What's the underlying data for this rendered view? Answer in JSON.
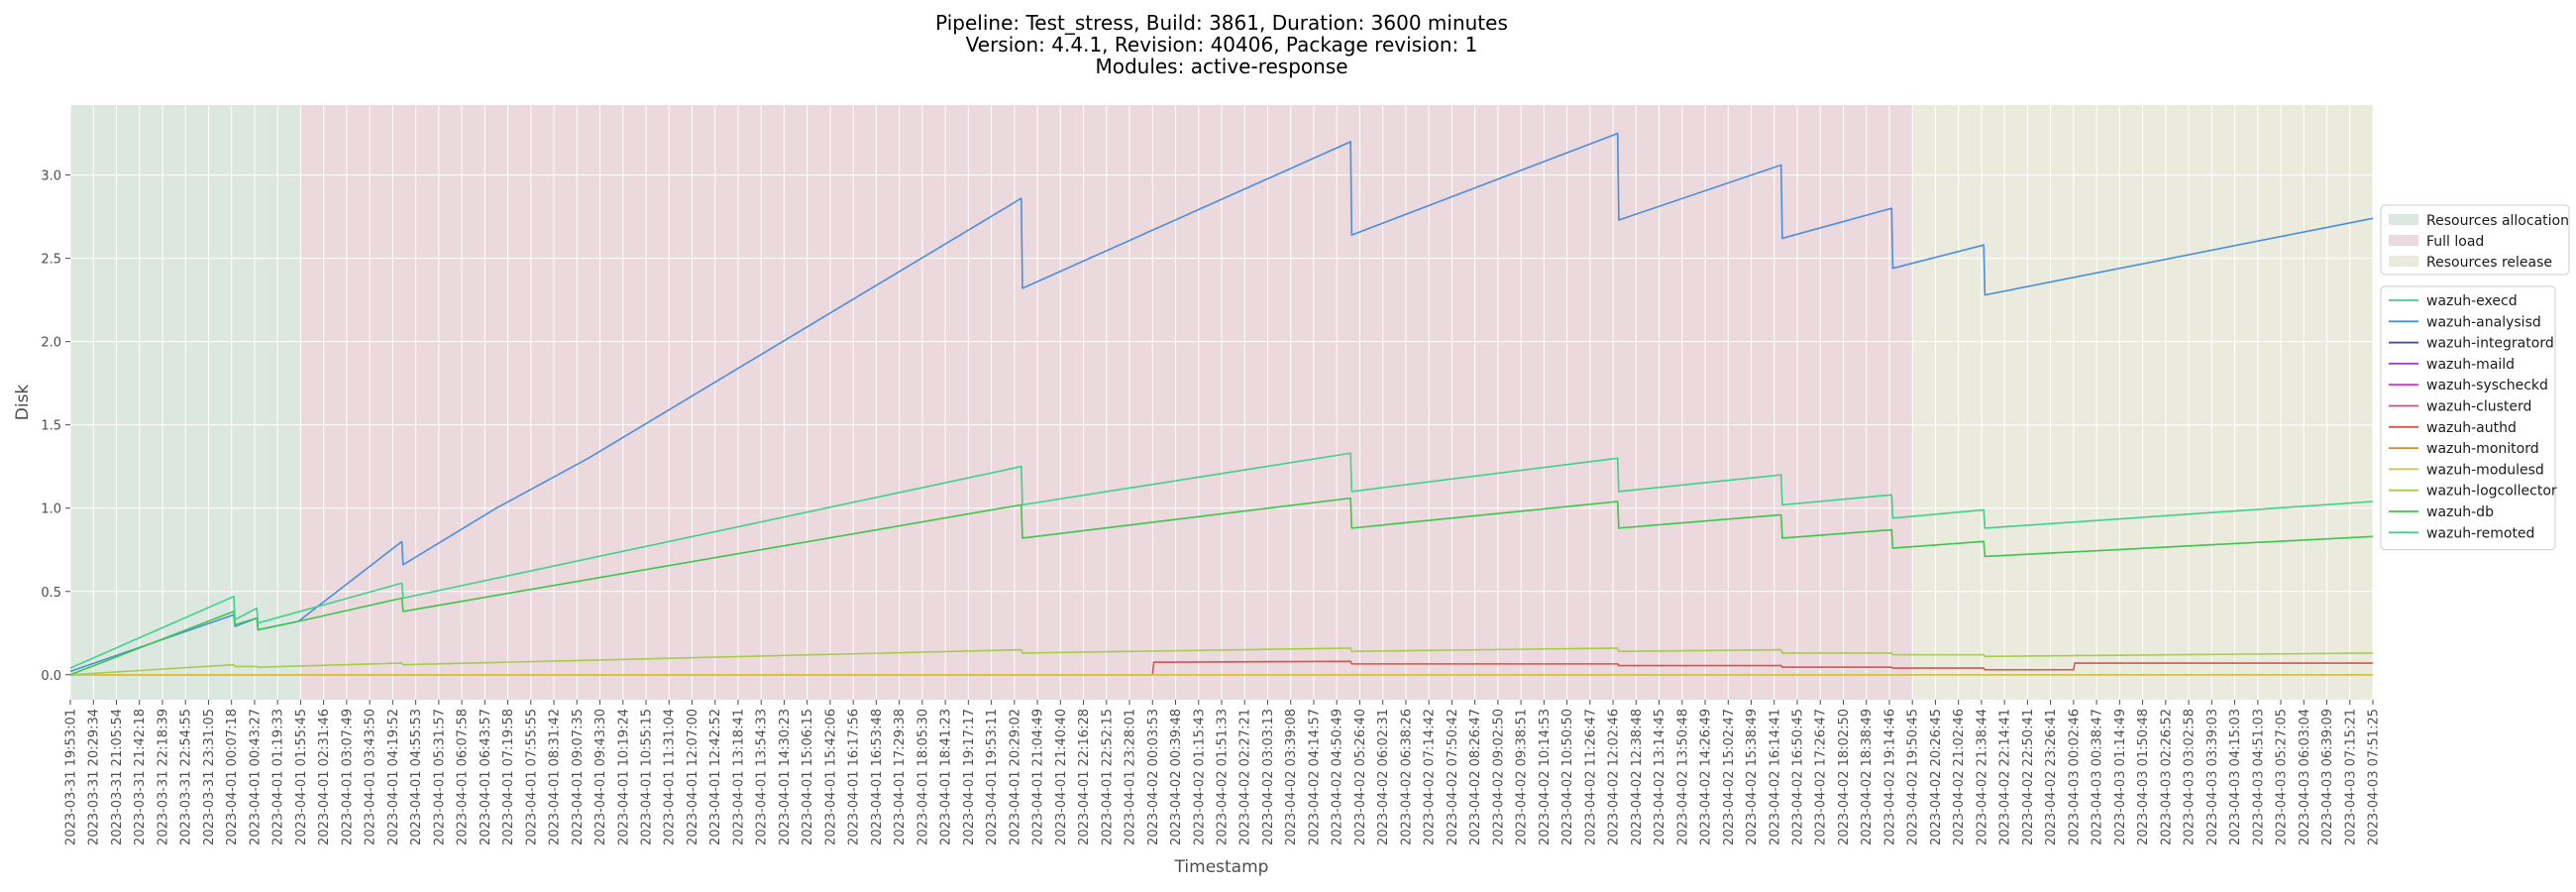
{
  "chart_data": {
    "type": "line",
    "title_lines": [
      "Pipeline: Test_stress, Build: 3861, Duration: 3600 minutes",
      "Version: 4.4.1, Revision: 40406, Package revision: 1",
      "Modules: active-response"
    ],
    "xlabel": "Timestamp",
    "ylabel": "Disk",
    "ylim": [
      -0.15,
      3.42
    ],
    "yticks": [
      0.0,
      0.5,
      1.0,
      1.5,
      2.0,
      2.5,
      3.0
    ],
    "ytick_labels": [
      "0.0",
      "0.5",
      "1.0",
      "1.5",
      "2.0",
      "2.5",
      "3.0"
    ],
    "xticks": [
      "2023-03-31 19:53:01",
      "2023-03-31 20:29:34",
      "2023-03-31 21:05:54",
      "2023-03-31 21:42:18",
      "2023-03-31 22:18:39",
      "2023-03-31 22:54:55",
      "2023-03-31 23:31:05",
      "2023-04-01 00:07:18",
      "2023-04-01 00:43:27",
      "2023-04-01 01:19:33",
      "2023-04-01 01:55:45",
      "2023-04-01 02:31:46",
      "2023-04-01 03:07:49",
      "2023-04-01 03:43:50",
      "2023-04-01 04:19:52",
      "2023-04-01 04:55:53",
      "2023-04-01 05:31:57",
      "2023-04-01 06:07:58",
      "2023-04-01 06:43:57",
      "2023-04-01 07:19:58",
      "2023-04-01 07:55:55",
      "2023-04-01 08:31:42",
      "2023-04-01 09:07:35",
      "2023-04-01 09:43:30",
      "2023-04-01 10:19:24",
      "2023-04-01 10:55:15",
      "2023-04-01 11:31:04",
      "2023-04-01 12:07:00",
      "2023-04-01 12:42:52",
      "2023-04-01 13:18:41",
      "2023-04-01 13:54:33",
      "2023-04-01 14:30:23",
      "2023-04-01 15:06:15",
      "2023-04-01 15:42:06",
      "2023-04-01 16:17:56",
      "2023-04-01 16:53:48",
      "2023-04-01 17:29:38",
      "2023-04-01 18:05:30",
      "2023-04-01 18:41:23",
      "2023-04-01 19:17:17",
      "2023-04-01 19:53:11",
      "2023-04-01 20:29:02",
      "2023-04-01 21:04:49",
      "2023-04-01 21:40:40",
      "2023-04-01 22:16:28",
      "2023-04-01 22:52:15",
      "2023-04-01 23:28:01",
      "2023-04-02 00:03:53",
      "2023-04-02 00:39:48",
      "2023-04-02 01:15:43",
      "2023-04-02 01:51:33",
      "2023-04-02 02:27:21",
      "2023-04-02 03:03:13",
      "2023-04-02 03:39:08",
      "2023-04-02 04:14:57",
      "2023-04-02 04:50:49",
      "2023-04-02 05:26:40",
      "2023-04-02 06:02:31",
      "2023-04-02 06:38:26",
      "2023-04-02 07:14:42",
      "2023-04-02 07:50:42",
      "2023-04-02 08:26:47",
      "2023-04-02 09:02:50",
      "2023-04-02 09:38:51",
      "2023-04-02 10:14:53",
      "2023-04-02 10:50:50",
      "2023-04-02 11:26:47",
      "2023-04-02 12:02:46",
      "2023-04-02 12:38:48",
      "2023-04-02 13:14:45",
      "2023-04-02 13:50:48",
      "2023-04-02 14:26:49",
      "2023-04-02 15:02:47",
      "2023-04-02 15:38:49",
      "2023-04-02 16:14:41",
      "2023-04-02 16:50:45",
      "2023-04-02 17:26:47",
      "2023-04-02 18:02:50",
      "2023-04-02 18:38:49",
      "2023-04-02 19:14:46",
      "2023-04-02 19:50:45",
      "2023-04-02 20:26:45",
      "2023-04-02 21:02:46",
      "2023-04-02 21:38:44",
      "2023-04-02 22:14:41",
      "2023-04-02 22:50:41",
      "2023-04-02 23:26:41",
      "2023-04-03 00:02:46",
      "2023-04-03 00:38:47",
      "2023-04-03 01:14:49",
      "2023-04-03 01:50:48",
      "2023-04-03 02:26:52",
      "2023-04-03 03:02:58",
      "2023-04-03 03:39:03",
      "2023-04-03 04:15:03",
      "2023-04-03 04:51:03",
      "2023-04-03 05:27:05",
      "2023-04-03 06:03:04",
      "2023-04-03 06:39:09",
      "2023-04-03 07:15:21",
      "2023-04-03 07:51:25"
    ],
    "phases": [
      {
        "name": "Resources allocation",
        "start": 0,
        "end": 10,
        "color": "#b9cfc0"
      },
      {
        "name": "Full load",
        "start": 10,
        "end": 80,
        "color": "#d8b4bc"
      },
      {
        "name": "Resources release",
        "start": 80,
        "end": 100,
        "color": "#d7d8bb"
      }
    ],
    "grid": true,
    "legend_position": "right",
    "series": [
      {
        "name": "wazuh-execd",
        "color": "#4ec3a0",
        "points": []
      },
      {
        "name": "wazuh-analysisd",
        "color": "#4a8fdc",
        "points": [
          [
            0,
            0.02
          ],
          [
            7.1,
            0.36
          ],
          [
            7.15,
            0.29
          ],
          [
            8.1,
            0.34
          ],
          [
            8.15,
            0.27
          ],
          [
            9.9,
            0.32
          ],
          [
            14.4,
            0.8
          ],
          [
            14.45,
            0.66
          ],
          [
            18.5,
            1.0
          ],
          [
            22.5,
            1.3
          ],
          [
            41.3,
            2.86
          ],
          [
            41.35,
            2.32
          ],
          [
            55.6,
            3.2
          ],
          [
            55.65,
            2.64
          ],
          [
            67.2,
            3.25
          ],
          [
            67.25,
            2.73
          ],
          [
            74.3,
            3.06
          ],
          [
            74.35,
            2.62
          ],
          [
            79.1,
            2.8
          ],
          [
            79.15,
            2.44
          ],
          [
            83.1,
            2.58
          ],
          [
            83.15,
            2.28
          ],
          [
            100,
            2.74
          ]
        ]
      },
      {
        "name": "wazuh-integratord",
        "color": "#3a3fb0",
        "points": []
      },
      {
        "name": "wazuh-maild",
        "color": "#9b3fd1",
        "points": []
      },
      {
        "name": "wazuh-syscheckd",
        "color": "#c63fc6",
        "points": []
      },
      {
        "name": "wazuh-clusterd",
        "color": "#d64a8a",
        "points": []
      },
      {
        "name": "wazuh-authd",
        "color": "#d9534f",
        "points": [
          [
            0,
            0.0
          ],
          [
            47.0,
            0.0
          ],
          [
            47.05,
            0.075
          ],
          [
            55.6,
            0.08
          ],
          [
            55.65,
            0.065
          ],
          [
            67.2,
            0.065
          ],
          [
            67.25,
            0.055
          ],
          [
            74.3,
            0.055
          ],
          [
            74.35,
            0.045
          ],
          [
            79.1,
            0.045
          ],
          [
            79.15,
            0.04
          ],
          [
            83.1,
            0.04
          ],
          [
            83.15,
            0.03
          ],
          [
            87.0,
            0.03
          ],
          [
            87.05,
            0.07
          ],
          [
            100,
            0.07
          ]
        ]
      },
      {
        "name": "wazuh-monitord",
        "color": "#c8903a",
        "points": [
          [
            0,
            0.0
          ],
          [
            100,
            0.0
          ]
        ]
      },
      {
        "name": "wazuh-modulesd",
        "color": "#d7c23a",
        "points": [
          [
            0,
            0.0
          ],
          [
            100,
            0.0
          ]
        ]
      },
      {
        "name": "wazuh-logcollector",
        "color": "#a6cc4b",
        "points": [
          [
            0,
            0.0
          ],
          [
            7.1,
            0.06
          ],
          [
            7.15,
            0.05
          ],
          [
            8.1,
            0.05
          ],
          [
            8.15,
            0.045
          ],
          [
            14.4,
            0.07
          ],
          [
            14.45,
            0.06
          ],
          [
            41.3,
            0.15
          ],
          [
            41.35,
            0.13
          ],
          [
            55.6,
            0.16
          ],
          [
            55.65,
            0.14
          ],
          [
            67.2,
            0.16
          ],
          [
            67.25,
            0.14
          ],
          [
            74.3,
            0.15
          ],
          [
            74.35,
            0.13
          ],
          [
            79.1,
            0.13
          ],
          [
            79.15,
            0.12
          ],
          [
            83.1,
            0.12
          ],
          [
            83.15,
            0.11
          ],
          [
            100,
            0.13
          ]
        ]
      },
      {
        "name": "wazuh-db",
        "color": "#3cc64b",
        "points": [
          [
            0,
            0.0
          ],
          [
            7.1,
            0.38
          ],
          [
            7.15,
            0.3
          ],
          [
            8.1,
            0.34
          ],
          [
            8.15,
            0.27
          ],
          [
            9.9,
            0.32
          ],
          [
            14.4,
            0.46
          ],
          [
            14.45,
            0.38
          ],
          [
            41.3,
            1.02
          ],
          [
            41.35,
            0.82
          ],
          [
            55.6,
            1.06
          ],
          [
            55.65,
            0.88
          ],
          [
            67.2,
            1.04
          ],
          [
            67.25,
            0.88
          ],
          [
            74.3,
            0.96
          ],
          [
            74.35,
            0.82
          ],
          [
            79.1,
            0.87
          ],
          [
            79.15,
            0.76
          ],
          [
            83.1,
            0.8
          ],
          [
            83.15,
            0.71
          ],
          [
            100,
            0.83
          ]
        ]
      },
      {
        "name": "wazuh-remoted",
        "color": "#3ed28a",
        "points": [
          [
            0,
            0.04
          ],
          [
            7.1,
            0.47
          ],
          [
            7.15,
            0.33
          ],
          [
            8.1,
            0.4
          ],
          [
            8.15,
            0.31
          ],
          [
            14.4,
            0.55
          ],
          [
            14.45,
            0.46
          ],
          [
            41.3,
            1.25
          ],
          [
            41.35,
            1.02
          ],
          [
            55.6,
            1.33
          ],
          [
            55.65,
            1.1
          ],
          [
            67.2,
            1.3
          ],
          [
            67.25,
            1.1
          ],
          [
            74.3,
            1.2
          ],
          [
            74.35,
            1.02
          ],
          [
            79.1,
            1.08
          ],
          [
            79.15,
            0.94
          ],
          [
            83.1,
            0.99
          ],
          [
            83.15,
            0.88
          ],
          [
            100,
            1.04
          ]
        ]
      }
    ]
  }
}
